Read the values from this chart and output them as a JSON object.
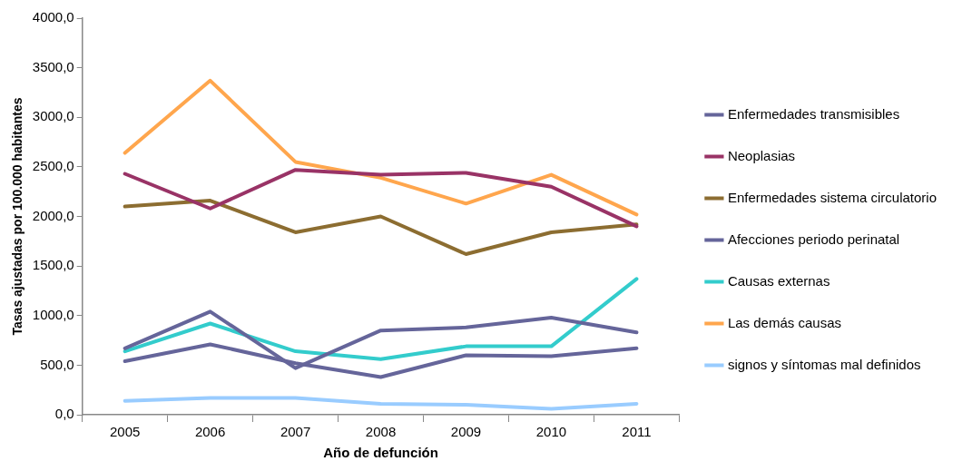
{
  "chart_data": {
    "type": "line",
    "xlabel": "Año de defunción",
    "ylabel": "Tasas ajustadas por 100.000 habitantes",
    "categories": [
      "2005",
      "2006",
      "2007",
      "2008",
      "2009",
      "2010",
      "2011"
    ],
    "series": [
      {
        "name": "Enfermedades transmisibles",
        "color": "#65659a",
        "values": [
          670,
          1040,
          470,
          850,
          880,
          980,
          830
        ]
      },
      {
        "name": "Neoplasias",
        "color": "#993366",
        "values": [
          2430,
          2080,
          2470,
          2420,
          2440,
          2300,
          1900
        ]
      },
      {
        "name": "Enfermedades sistema circulatorio",
        "color": "#8c6d31",
        "values": [
          2100,
          2160,
          1840,
          2000,
          1620,
          1840,
          1920
        ]
      },
      {
        "name": "Afecciones periodo perinatal",
        "color": "#65659a",
        "values": [
          540,
          710,
          520,
          380,
          600,
          590,
          670
        ]
      },
      {
        "name": "Causas externas",
        "color": "#33cccc",
        "values": [
          640,
          920,
          640,
          560,
          690,
          690,
          1370
        ]
      },
      {
        "name": "Las demás causas",
        "color": "#ffa64d",
        "values": [
          2640,
          3370,
          2550,
          2390,
          2130,
          2420,
          2020
        ]
      },
      {
        "name": "signos y síntomas mal definidos",
        "color": "#99ccff",
        "values": [
          140,
          170,
          170,
          110,
          100,
          60,
          110
        ]
      }
    ],
    "ylim": [
      0,
      4000
    ],
    "yticks": [
      {
        "value": 0,
        "label": "0,0"
      },
      {
        "value": 500,
        "label": "500,0"
      },
      {
        "value": 1000,
        "label": "1000,0"
      },
      {
        "value": 1500,
        "label": "1500,0"
      },
      {
        "value": 2000,
        "label": "2000,0"
      },
      {
        "value": 2500,
        "label": "2500,0"
      },
      {
        "value": 3000,
        "label": "3000,0"
      },
      {
        "value": 3500,
        "label": "3500,0"
      },
      {
        "value": 4000,
        "label": "4000,0"
      }
    ],
    "grid": false,
    "legend": "right",
    "marker": "none",
    "line_style": "solid"
  }
}
